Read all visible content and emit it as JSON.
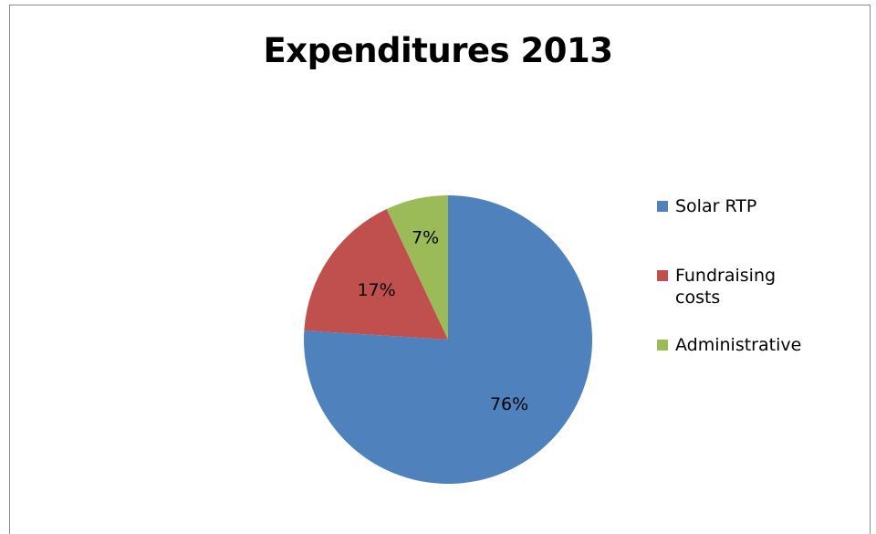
{
  "chart_data": {
    "type": "pie",
    "title": "Expenditures 2013",
    "categories": [
      "Solar RTP",
      "Fundraising costs",
      "Administrative"
    ],
    "values": [
      76,
      17,
      7
    ],
    "labels": [
      "76%",
      "17%",
      "7%"
    ],
    "colors": [
      "#4f81bd",
      "#c0504d",
      "#9bbb59"
    ],
    "legend_position": "right"
  }
}
